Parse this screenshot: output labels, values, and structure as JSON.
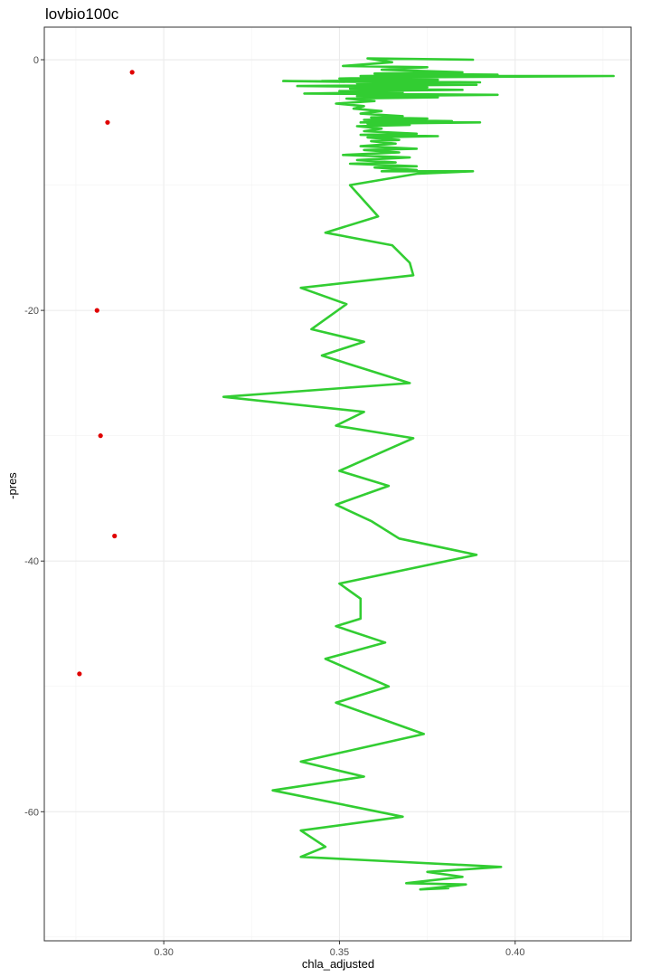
{
  "chart_data": {
    "type": "line",
    "title": "lovbio100c",
    "xlabel": "chla_adjusted",
    "ylabel": "-pres",
    "xlim": [
      0.266,
      0.433
    ],
    "ylim": [
      -70.3,
      2.6
    ],
    "x_ticks": [
      0.3,
      0.35,
      0.4
    ],
    "x_tick_labels": [
      "0.30",
      "0.35",
      "0.40"
    ],
    "y_ticks": [
      0,
      -20,
      -40,
      -60
    ],
    "y_tick_labels": [
      "0",
      "-20",
      "-40",
      "-60"
    ],
    "grid": true,
    "legend": "none",
    "series": [
      {
        "kind": "line",
        "color": "#32cd32",
        "points": [
          [
            0.388,
            0.0
          ],
          [
            0.358,
            0.1
          ],
          [
            0.365,
            -0.2
          ],
          [
            0.351,
            -0.5
          ],
          [
            0.375,
            -0.6
          ],
          [
            0.362,
            -0.8
          ],
          [
            0.385,
            -1.0
          ],
          [
            0.36,
            -1.1
          ],
          [
            0.395,
            -1.2
          ],
          [
            0.356,
            -1.3
          ],
          [
            0.428,
            -1.3
          ],
          [
            0.37,
            -1.4
          ],
          [
            0.35,
            -1.5
          ],
          [
            0.378,
            -1.6
          ],
          [
            0.345,
            -1.7
          ],
          [
            0.39,
            -1.8
          ],
          [
            0.334,
            -1.7
          ],
          [
            0.365,
            -1.8
          ],
          [
            0.355,
            -1.9
          ],
          [
            0.389,
            -2.0
          ],
          [
            0.338,
            -2.1
          ],
          [
            0.375,
            -2.2
          ],
          [
            0.353,
            -2.3
          ],
          [
            0.385,
            -2.4
          ],
          [
            0.35,
            -2.5
          ],
          [
            0.368,
            -2.6
          ],
          [
            0.34,
            -2.7
          ],
          [
            0.395,
            -2.8
          ],
          [
            0.355,
            -2.9
          ],
          [
            0.378,
            -3.0
          ],
          [
            0.352,
            -3.1
          ],
          [
            0.36,
            -3.3
          ],
          [
            0.349,
            -3.5
          ],
          [
            0.357,
            -3.7
          ],
          [
            0.354,
            -3.9
          ],
          [
            0.362,
            -4.1
          ],
          [
            0.356,
            -4.3
          ],
          [
            0.368,
            -4.5
          ],
          [
            0.359,
            -4.6
          ],
          [
            0.375,
            -4.7
          ],
          [
            0.357,
            -4.8
          ],
          [
            0.382,
            -4.9
          ],
          [
            0.356,
            -5.0
          ],
          [
            0.39,
            -5.0
          ],
          [
            0.358,
            -5.1
          ],
          [
            0.37,
            -5.2
          ],
          [
            0.355,
            -5.3
          ],
          [
            0.362,
            -5.5
          ],
          [
            0.357,
            -5.7
          ],
          [
            0.372,
            -5.9
          ],
          [
            0.356,
            -6.0
          ],
          [
            0.378,
            -6.1
          ],
          [
            0.358,
            -6.2
          ],
          [
            0.367,
            -6.4
          ],
          [
            0.359,
            -6.5
          ],
          [
            0.366,
            -6.7
          ],
          [
            0.356,
            -6.9
          ],
          [
            0.372,
            -7.1
          ],
          [
            0.357,
            -7.2
          ],
          [
            0.367,
            -7.4
          ],
          [
            0.351,
            -7.6
          ],
          [
            0.37,
            -7.8
          ],
          [
            0.355,
            -8.0
          ],
          [
            0.366,
            -8.2
          ],
          [
            0.353,
            -8.3
          ],
          [
            0.372,
            -8.5
          ],
          [
            0.36,
            -8.6
          ],
          [
            0.372,
            -8.8
          ],
          [
            0.362,
            -8.9
          ],
          [
            0.388,
            -8.9
          ],
          [
            0.372,
            -9.1
          ],
          [
            0.353,
            -10.0
          ],
          [
            0.361,
            -12.5
          ],
          [
            0.346,
            -13.8
          ],
          [
            0.365,
            -14.8
          ],
          [
            0.37,
            -16.2
          ],
          [
            0.371,
            -17.2
          ],
          [
            0.339,
            -18.2
          ],
          [
            0.352,
            -19.5
          ],
          [
            0.342,
            -21.5
          ],
          [
            0.357,
            -22.5
          ],
          [
            0.345,
            -23.6
          ],
          [
            0.37,
            -25.8
          ],
          [
            0.317,
            -26.9
          ],
          [
            0.357,
            -28.1
          ],
          [
            0.349,
            -29.2
          ],
          [
            0.371,
            -30.2
          ],
          [
            0.35,
            -32.8
          ],
          [
            0.364,
            -34.0
          ],
          [
            0.349,
            -35.5
          ],
          [
            0.359,
            -36.8
          ],
          [
            0.367,
            -38.2
          ],
          [
            0.389,
            -39.5
          ],
          [
            0.35,
            -41.8
          ],
          [
            0.356,
            -43.0
          ],
          [
            0.356,
            -44.6
          ],
          [
            0.349,
            -45.2
          ],
          [
            0.363,
            -46.5
          ],
          [
            0.346,
            -47.8
          ],
          [
            0.364,
            -50.0
          ],
          [
            0.349,
            -51.3
          ],
          [
            0.374,
            -53.8
          ],
          [
            0.339,
            -56.0
          ],
          [
            0.357,
            -57.2
          ],
          [
            0.331,
            -58.3
          ],
          [
            0.368,
            -60.4
          ],
          [
            0.339,
            -61.5
          ],
          [
            0.346,
            -62.8
          ],
          [
            0.339,
            -63.6
          ],
          [
            0.396,
            -64.4
          ],
          [
            0.375,
            -64.8
          ],
          [
            0.385,
            -65.2
          ],
          [
            0.369,
            -65.7
          ],
          [
            0.386,
            -65.8
          ],
          [
            0.373,
            -66.2
          ],
          [
            0.381,
            -66.1
          ]
        ]
      },
      {
        "kind": "points",
        "color": "#e00000",
        "points": [
          [
            0.291,
            -1.0
          ],
          [
            0.284,
            -5.0
          ],
          [
            0.281,
            -20.0
          ],
          [
            0.282,
            -30.0
          ],
          [
            0.286,
            -38.0
          ],
          [
            0.276,
            -49.0
          ]
        ]
      }
    ]
  }
}
